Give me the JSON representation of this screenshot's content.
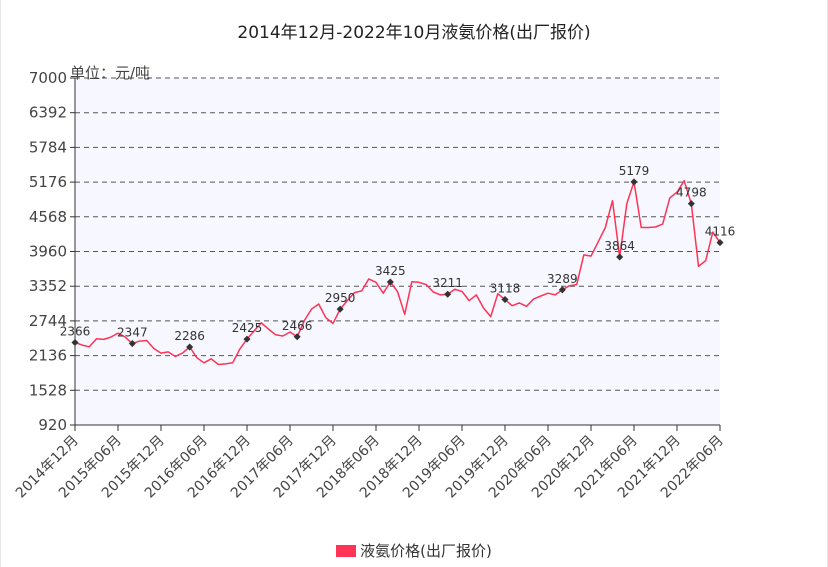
{
  "chart_data": {
    "type": "line",
    "title": "2014年12月-2022年10月液氨价格(出厂报价)",
    "unit_label": "单位：元/吨",
    "ylim": [
      920,
      7000
    ],
    "yticks": [
      920,
      1528,
      2136,
      2744,
      3352,
      3960,
      4568,
      5176,
      5784,
      6392,
      7000
    ],
    "xticks": [
      "2014年12月",
      "2015年06月",
      "2015年12月",
      "2016年06月",
      "2016年12月",
      "2017年06月",
      "2017年12月",
      "2018年06月",
      "2018年12月",
      "2019年06月",
      "2019年12月",
      "2020年06月",
      "2020年12月",
      "2021年06月",
      "2021年12月",
      "2022年06月"
    ],
    "grid": true,
    "legend_position": "bottom",
    "series": [
      {
        "name": "液氨价格(出厂报价)",
        "color": "#ff3355",
        "values": [
          2366,
          2320,
          2290,
          2430,
          2420,
          2460,
          2530,
          2460,
          2347,
          2390,
          2400,
          2260,
          2180,
          2200,
          2120,
          2180,
          2286,
          2100,
          2010,
          2080,
          1980,
          1990,
          2010,
          2250,
          2425,
          2570,
          2710,
          2600,
          2500,
          2480,
          2550,
          2466,
          2750,
          2950,
          3040,
          2800,
          2700,
          2950,
          3100,
          3240,
          3270,
          3480,
          3420,
          3230,
          3425,
          3260,
          2860,
          3430,
          3420,
          3380,
          3250,
          3200,
          3211,
          3300,
          3260,
          3100,
          3200,
          2970,
          2820,
          3220,
          3118,
          3010,
          3060,
          3000,
          3130,
          3180,
          3230,
          3200,
          3289,
          3360,
          3380,
          3900,
          3880,
          4130,
          4380,
          4850,
          3864,
          4800,
          5179,
          4380,
          4380,
          4390,
          4440,
          4900,
          5000,
          5200,
          4798,
          3700,
          3800,
          4300,
          4116
        ]
      }
    ],
    "data_labels": [
      {
        "index": 0,
        "text": "2366"
      },
      {
        "index": 8,
        "text": "2347"
      },
      {
        "index": 16,
        "text": "2286"
      },
      {
        "index": 24,
        "text": "2425"
      },
      {
        "index": 31,
        "text": "2466"
      },
      {
        "index": 37,
        "text": "2950"
      },
      {
        "index": 44,
        "text": "3425"
      },
      {
        "index": 52,
        "text": "3211"
      },
      {
        "index": 60,
        "text": "3118"
      },
      {
        "index": 68,
        "text": "3289"
      },
      {
        "index": 76,
        "text": "3864"
      },
      {
        "index": 78,
        "text": "5179"
      },
      {
        "index": 86,
        "text": "4798"
      },
      {
        "index": 90,
        "text": "4116"
      }
    ]
  }
}
